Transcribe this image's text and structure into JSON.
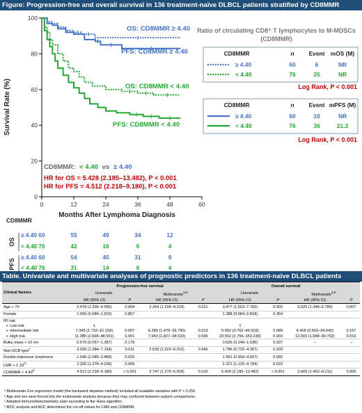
{
  "figure": {
    "title": "Figure: Progression-free and overall survival in 136 treatment-naïve DLBCL patients stratified by CD8MMR"
  },
  "colors": {
    "header_band": "#1f4e79",
    "high_group": "#4472c4",
    "low_group": "#22a832",
    "log_rank": "#c00000",
    "hr_text": "#c00000"
  },
  "chart_data": {
    "type": "line",
    "step": true,
    "xlabel": "Months After Lymphoma Diagnosis",
    "ylabel": "Survival Rate (%)",
    "xlim": [
      0,
      60
    ],
    "ylim": [
      0,
      100
    ],
    "xticks": [
      0,
      12,
      24,
      36,
      48,
      60
    ],
    "yticks": [
      0,
      20,
      40,
      60,
      80,
      100
    ],
    "grid": false,
    "series": [
      {
        "name": "OS: CD8MMR ≥ 4.40",
        "group": "high",
        "style": "dotted",
        "x": [
          0,
          2,
          4,
          6,
          9,
          12,
          15,
          20,
          52
        ],
        "y": [
          100,
          98,
          97,
          95,
          93,
          92,
          91,
          89,
          89
        ]
      },
      {
        "name": "PFS: CD8MMR ≥ 4.40",
        "group": "high",
        "style": "solid",
        "x": [
          0,
          2,
          4,
          6,
          9,
          12,
          16,
          20,
          22,
          30,
          52
        ],
        "y": [
          100,
          97,
          96,
          94,
          92,
          91,
          88,
          87,
          85,
          83,
          83
        ]
      },
      {
        "name": "OS: CD8MMR < 4.40",
        "group": "low",
        "style": "dotted",
        "x": [
          0,
          1,
          2,
          3,
          4,
          6,
          8,
          10,
          12,
          14,
          16,
          19,
          24,
          30,
          36,
          42,
          52
        ],
        "y": [
          100,
          95,
          92,
          88,
          85,
          80,
          76,
          72,
          70,
          67,
          64,
          62,
          60,
          59,
          58,
          57,
          57
        ]
      },
      {
        "name": "PFS: CD8MMR < 4.40",
        "group": "low",
        "style": "solid",
        "x": [
          0,
          1,
          2,
          3,
          4,
          5,
          6,
          8,
          10,
          12,
          14,
          16,
          18,
          21,
          24,
          28,
          33,
          38,
          44,
          52
        ],
        "y": [
          100,
          93,
          88,
          84,
          80,
          76,
          72,
          68,
          64,
          61,
          58,
          55,
          52,
          50,
          48,
          47,
          46,
          45,
          44,
          44
        ]
      }
    ],
    "curve_labels": {
      "os_high": "OS: CD8MMR ≥ 4.40",
      "pfs_high": "PFS: CD8MMR ≥ 4.40",
      "os_low": "OS: CD8MMR < 4.40",
      "pfs_low": "PFS: CD8MMR < 4.40"
    },
    "group_label": {
      "prefix": "CD8MMR:",
      "low": "< 4.40",
      "vs": "vs",
      "high": "≥ 4.40"
    },
    "hazard_ratios": {
      "os": "HR for OS = 5.428 (2.185–13.482), P < 0.001",
      "pfs": "HR for PFS = 4.512 (2.218–9.180), P < 0.001"
    },
    "at_risk": {
      "header": "CD8MMR",
      "times": [
        0,
        12,
        24,
        36,
        48
      ],
      "OS": [
        {
          "group": "≥ 4.40",
          "counts": [
            60,
            55,
            49,
            34,
            12
          ]
        },
        {
          "group": "< 4.40",
          "counts": [
            76,
            42,
            16,
            6,
            4
          ]
        }
      ],
      "PFS": [
        {
          "group": "≥ 4.40",
          "counts": [
            60,
            54,
            45,
            31,
            9
          ]
        },
        {
          "group": "< 4.40",
          "counts": [
            76,
            31,
            14,
            6,
            4
          ]
        }
      ]
    },
    "legend_title": "Ratio of circulating CD8⁺ T lymphocytes to M-MDSCs (CD8MMR)",
    "os_legend": {
      "headers": [
        "CD8MMR",
        "n",
        "Event",
        "mOS (M)"
      ],
      "rows": [
        {
          "label": "≥ 4.40",
          "n": "60",
          "event": "6",
          "median": "NR"
        },
        {
          "label": "< 4.40",
          "n": "76",
          "event": "25",
          "median": "NR"
        }
      ],
      "log_rank": "Log Rank, P < 0.001"
    },
    "pfs_legend": {
      "headers": [
        "CD8MMR",
        "n",
        "Event",
        "mPFS (M)"
      ],
      "rows": [
        {
          "label": "≥ 4.40",
          "n": "60",
          "event": "10",
          "median": "NR"
        },
        {
          "label": "< 4.40",
          "n": "76",
          "event": "36",
          "median": "21.3"
        }
      ],
      "log_rank": "Log Rank, P < 0.001"
    }
  },
  "table": {
    "title": "Table. Univariate and multivariate analyses of prognostic predictors in 136 treatment-naïve DLBCL patients",
    "headers": {
      "factor": "Clinical factors",
      "pfs": "Progression-free survival",
      "os": "Overall survival",
      "uni": "Univariate",
      "multi": "Multivariate",
      "multi_sup": "a,b",
      "hr": "HR (95% CI)",
      "p": "P"
    },
    "rows": [
      {
        "factor": "Age > 70",
        "cells": [
          "2.478 (1.336–4.596)",
          "0.004",
          "2.254 (1.206–4.214)",
          "0.011",
          "3.477 (1.553–7.782)",
          "0.002",
          "3.025 (1.348–6.786)",
          "0.007"
        ]
      },
      {
        "factor": "Female",
        "cells": [
          "1.056 (0.584–1.910)",
          "0.857",
          "",
          "",
          "1.388 (0.684–2.818)",
          "0.364",
          "",
          ""
        ]
      },
      {
        "factor": "IPI risk",
        "cells": [
          "",
          "",
          "",
          "",
          "",
          "",
          "",
          ""
        ]
      },
      {
        "factor": "➢ Low risk",
        "cells": [
          "1",
          "",
          "",
          "",
          "1",
          "",
          "",
          ""
        ]
      },
      {
        "factor": "➢ Intermediate risk",
        "cells": [
          "7.345 (1.732–31.156)",
          "0.007",
          "6.289 (1.476–26.790)",
          "0.013",
          "5.952 (0.762–46.503)",
          "0.089",
          "4.418 (0.563–34.642)",
          "0.157"
        ]
      },
      {
        "factor": "➢ High risk",
        "cells": [
          "11.385 (2.668–48.591)",
          "0.001",
          "7.943 (1.827–34.533)",
          "0.006",
          "20.552 (2.756–153.238)",
          "0.003",
          "12.003 (1.588–90.702)",
          "0.016"
        ]
      },
      {
        "factor": "Bulky mass > 10 cm",
        "cells": [
          "0.576 (0.257–1.287)",
          "0.179",
          "",
          "",
          "0.626 (0.240–1.630)",
          "0.337",
          "–",
          "–"
        ]
      },
      {
        "factor": "Non-GCB type",
        "sup": "c",
        "cells": [
          "3.030 (1.284–7.154)",
          "0.011",
          "2.539 (1.022–6.312)",
          "0.045",
          "1.786 (0.732–4.357)",
          "0.203",
          "",
          ""
        ]
      },
      {
        "factor": "Double expressor lymphoma",
        "cells": [
          "1.946 (1.086–3.489)",
          "0.025",
          "",
          "",
          "1.961 (0.959–4.007)",
          "0.065",
          "",
          ""
        ]
      },
      {
        "factor": "LMR < 1.19",
        "sup": "d",
        "cells": [
          "2.326 (1.278–4.236)",
          "0.006",
          "",
          "",
          "2.321 (1.126–4.784)",
          "0.022",
          "",
          ""
        ]
      },
      {
        "factor": "CD8MMR < 4.40",
        "sup": "d",
        "cells": [
          "4.512 (2.218–9.180)",
          "< 0.001",
          "2.747 (1.275–5.918)",
          "0.010",
          "5.428 (2.185–13.482)",
          "< 0.001",
          "3.669 (1.462–9.211)",
          "0.006"
        ]
      }
    ],
    "footnotes": [
      "ᵃ Multivariate Cox regression model (the backward stepwise method) included all available variables with P < 0.250.",
      "ᵇ Age and sex were forced into the multivariate analysis because they may confound between-subject comparisons.",
      "ᶜ Adopted immunohistochemistry stain according to the Hans algorithm.",
      "ᵈ ROC analysis and AUC determined the cut-off values for LMR and CD8MMR."
    ]
  }
}
